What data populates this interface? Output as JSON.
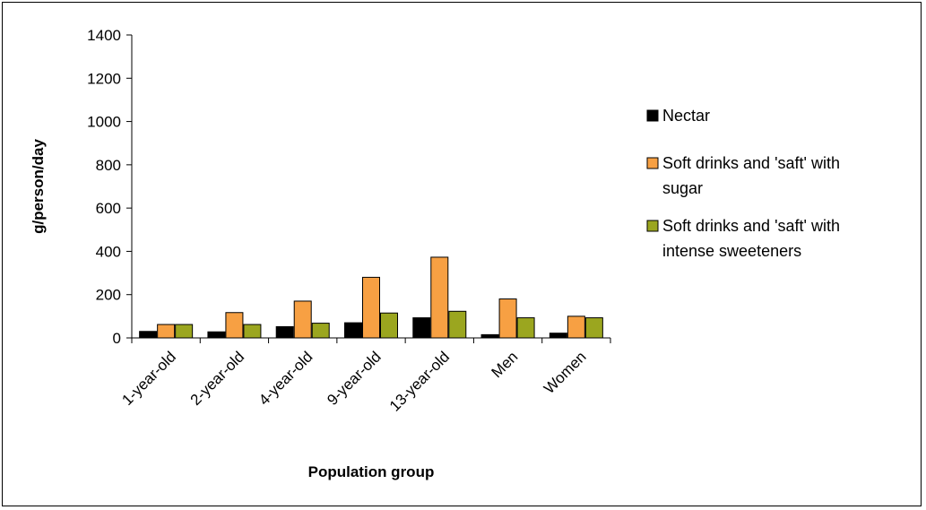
{
  "chart_data": {
    "type": "bar",
    "title": "",
    "xlabel": "Population group",
    "ylabel": "g/person/day",
    "ylim": [
      0,
      1400
    ],
    "yticks": [
      0,
      200,
      400,
      600,
      800,
      1000,
      1200,
      1400
    ],
    "categories": [
      "1-year-old",
      "2-year-old",
      "4-year-old",
      "9-year-old",
      "13-year-old",
      "Men",
      "Women"
    ],
    "series": [
      {
        "name": "Nectar",
        "color": "#000000",
        "values": [
          30,
          28,
          52,
          70,
          93,
          15,
          22
        ]
      },
      {
        "name": "Soft drinks and 'saft' with sugar",
        "color": "#F7A043",
        "values": [
          62,
          117,
          170,
          280,
          373,
          180,
          100
        ]
      },
      {
        "name": "Soft drinks and 'saft' with intense sweeteners",
        "color": "#9BA61F",
        "values": [
          62,
          62,
          68,
          115,
          123,
          93,
          93
        ]
      }
    ],
    "legend": {
      "position": "right",
      "lines": [
        [
          "Nectar"
        ],
        [
          "Soft drinks and 'saft' with",
          "sugar"
        ],
        [
          "Soft drinks and 'saft' with",
          "intense sweeteners"
        ]
      ]
    },
    "grid": false
  }
}
